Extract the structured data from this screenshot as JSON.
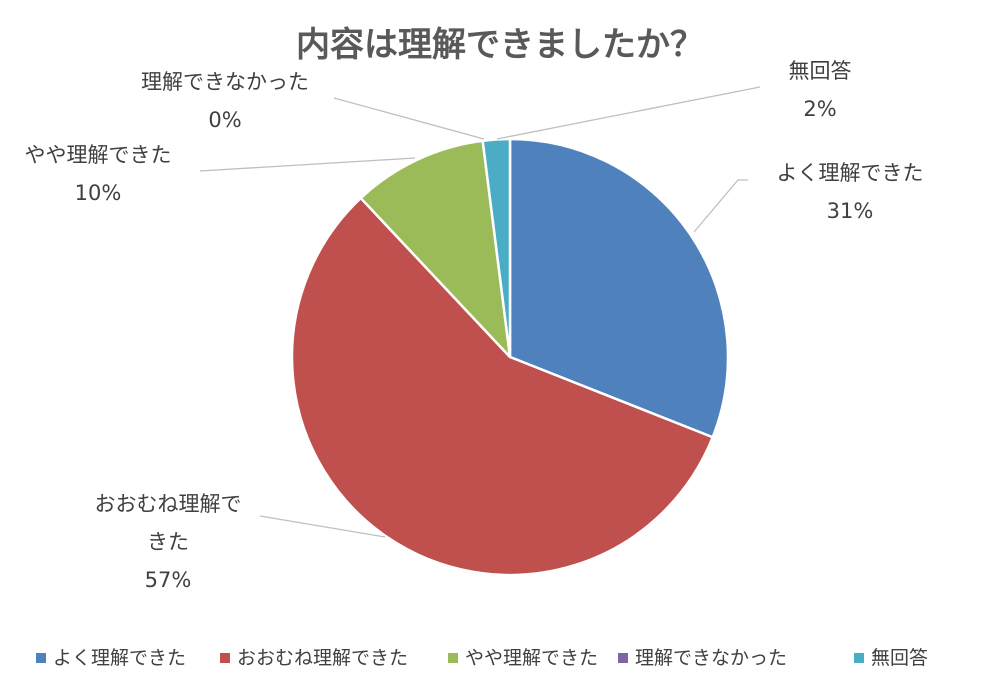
{
  "chart_data": {
    "type": "pie",
    "title": "内容は理解できましたか？",
    "slices": [
      {
        "label": "よく理解できた",
        "value": 31,
        "value_label": "31%",
        "color": "#4F81BD"
      },
      {
        "label": "おおむね理解できた",
        "value": 57,
        "value_label": "57%",
        "color": "#C0504D"
      },
      {
        "label": "やや理解できた",
        "value": 10,
        "value_label": "10%",
        "color": "#9BBB59"
      },
      {
        "label": "理解できなかった",
        "value": 0,
        "value_label": "0%",
        "color": "#8064A2"
      },
      {
        "label": "無回答",
        "value": 2,
        "value_label": "2%",
        "color": "#4BACC6"
      }
    ],
    "start": "12 o'clock",
    "direction": "clockwise",
    "legend_position": "bottom"
  }
}
